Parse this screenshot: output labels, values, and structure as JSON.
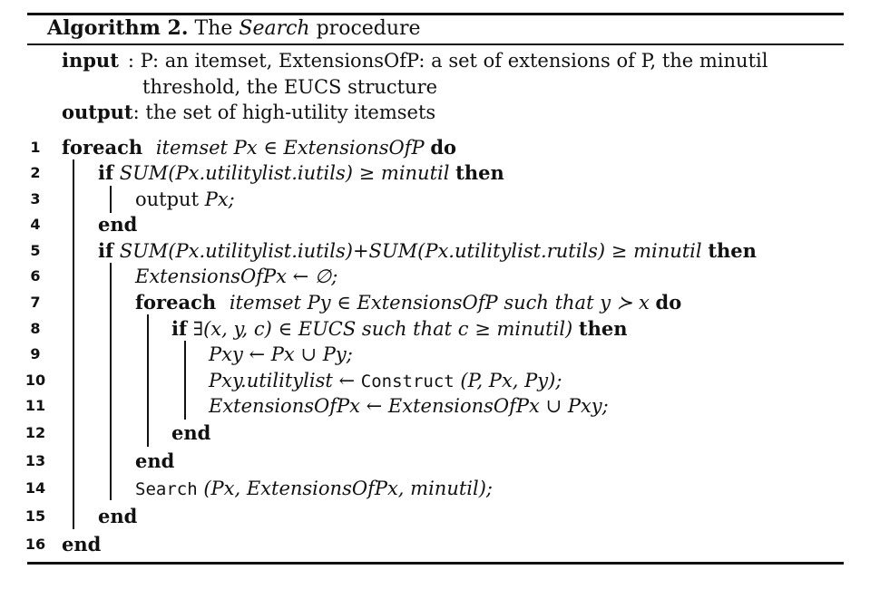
{
  "header": {
    "label": "Algorithm 2.",
    "pre": "The",
    "name": "Search",
    "post": "procedure"
  },
  "io": {
    "input_key": "input",
    "input_line1": ": P: an itemset, ExtensionsOfP: a set of extensions of P, the minutil",
    "input_line2": "threshold, the EUCS structure",
    "output_key": "output",
    "output_text": ": the set of high-utility itemsets"
  },
  "lines": [
    {
      "n": "1",
      "kw1": "foreach",
      "body": "itemset Px ∈ ExtensionsOfP",
      "kw2": "do"
    },
    {
      "n": "2",
      "kw1": "if",
      "body": "SUM(Px.utilitylist.iutils) ≥ minutil",
      "kw2": "then"
    },
    {
      "n": "3",
      "body_pre": "output",
      "body": "Px;"
    },
    {
      "n": "4",
      "kw1": "end"
    },
    {
      "n": "5",
      "kw1": "if",
      "body": "SUM(Px.utilitylist.iutils)+SUM(Px.utilitylist.rutils) ≥ minutil",
      "kw2": "then"
    },
    {
      "n": "6",
      "body": "ExtensionsOfPx ← ∅;"
    },
    {
      "n": "7",
      "kw1": "foreach",
      "body": "itemset Py ∈ ExtensionsOfP such that y ≻ x",
      "kw2": "do"
    },
    {
      "n": "8",
      "kw1": "if",
      "body": "∃(x, y, c) ∈ EUCS such that c ≥ minutil)",
      "kw2": "then"
    },
    {
      "n": "9",
      "body": "Pxy ← Px ∪ Py;"
    },
    {
      "n": "10",
      "body": "Pxy.utilitylist ←",
      "call": "Construct",
      "args": "(P, Px, Py);"
    },
    {
      "n": "11",
      "body": "ExtensionsOfPx ← ExtensionsOfPx ∪ Pxy;"
    },
    {
      "n": "12",
      "kw1": "end"
    },
    {
      "n": "13",
      "kw1": "end"
    },
    {
      "n": "14",
      "call": "Search",
      "args": "(Px, ExtensionsOfPx, minutil);"
    },
    {
      "n": "15",
      "kw1": "end"
    },
    {
      "n": "16",
      "kw1": "end"
    }
  ]
}
